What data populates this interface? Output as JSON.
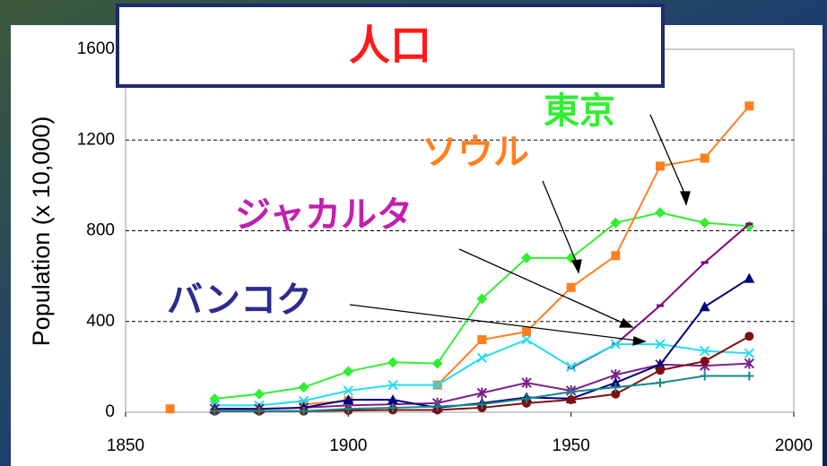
{
  "chart_data": {
    "type": "line",
    "title": "人口",
    "y_label": "Population (x 10,000)",
    "x": [
      1860,
      1870,
      1880,
      1890,
      1900,
      1910,
      1920,
      1930,
      1940,
      1950,
      1960,
      1970,
      1980,
      1990
    ],
    "xlim": [
      1850,
      2000
    ],
    "xticks": [
      1850,
      1900,
      1950,
      2000
    ],
    "ylim": [
      0,
      1600
    ],
    "yticks": [
      0,
      400,
      800,
      1200,
      1600
    ],
    "grid": true,
    "series": [
      {
        "color": "#33ee33",
        "marker": "diamond",
        "values": [
          null,
          60,
          80,
          110,
          180,
          220,
          215,
          500,
          680,
          680,
          835,
          880,
          835,
          820
        ]
      },
      {
        "color": "#ff7f1f",
        "marker": "square",
        "values": [
          15,
          null,
          null,
          35,
          50,
          null,
          120,
          320,
          355,
          550,
          690,
          1085,
          1120,
          1350
        ]
      },
      {
        "color": "#800080",
        "marker": "dash",
        "values": [
          null,
          null,
          null,
          null,
          null,
          null,
          null,
          null,
          null,
          195,
          300,
          470,
          660,
          830
        ]
      },
      {
        "color": "#22ddee",
        "marker": "x",
        "values": [
          null,
          30,
          30,
          50,
          95,
          120,
          120,
          240,
          320,
          200,
          300,
          300,
          270,
          260
        ]
      },
      {
        "color": "#7a1f8c",
        "marker": "star",
        "values": [
          null,
          15,
          15,
          20,
          30,
          35,
          40,
          85,
          130,
          95,
          165,
          210,
          205,
          215
        ]
      },
      {
        "color": "#00007f",
        "marker": "triangle",
        "values": [
          null,
          15,
          15,
          20,
          55,
          55,
          20,
          40,
          65,
          60,
          130,
          210,
          465,
          590
        ]
      },
      {
        "color": "#7f0f0f",
        "marker": "circle",
        "values": [
          null,
          5,
          5,
          5,
          8,
          10,
          10,
          20,
          40,
          55,
          80,
          185,
          225,
          335
        ]
      },
      {
        "color": "#118888",
        "marker": "plus",
        "values": [
          null,
          5,
          5,
          5,
          15,
          20,
          25,
          35,
          60,
          90,
          110,
          130,
          160,
          160
        ]
      }
    ],
    "annotations": [
      {
        "text": "東京",
        "color": "#33ee33"
      },
      {
        "text": "ソウル",
        "color": "#ff7f1f"
      },
      {
        "text": "ジャカルタ",
        "color": "#c020b0"
      },
      {
        "text": "バンコク",
        "color": "#2b2b8f"
      }
    ]
  }
}
